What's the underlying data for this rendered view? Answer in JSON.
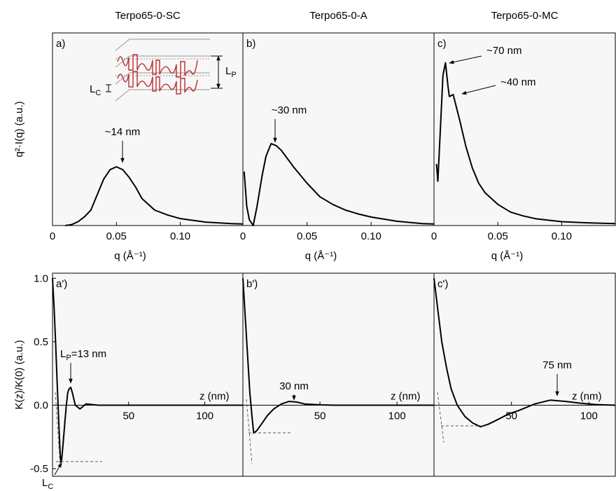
{
  "chart_data": [
    {
      "type": "line",
      "title": "Terpo65-0-SC",
      "panel_label": "a)",
      "xlabel": "q (Å⁻¹)",
      "ylabel": "q²·I(q) (a.u.)",
      "xlim": [
        0,
        0.149
      ],
      "xticks": [
        0,
        0.05,
        {
          "value": 0.1,
          "label": "0.10"
        }
      ],
      "ylim": [
        0,
        1
      ],
      "inset_labels": [
        {
          "text": "L",
          "sub": "P"
        },
        {
          "text": "L",
          "sub": "C"
        }
      ],
      "annotations": [
        {
          "text": "~14 nm"
        }
      ],
      "series": [
        {
          "color": "#000000",
          "x": [
            0.01,
            0.015,
            0.02,
            0.025,
            0.03,
            0.035,
            0.04,
            0.045,
            0.05,
            0.055,
            0.06,
            0.065,
            0.07,
            0.08,
            0.09,
            0.1,
            0.12,
            0.14,
            0.149
          ],
          "values": [
            0,
            0.005,
            0.02,
            0.045,
            0.08,
            0.16,
            0.24,
            0.29,
            0.305,
            0.29,
            0.25,
            0.2,
            0.14,
            0.08,
            0.055,
            0.036,
            0.018,
            0.01,
            0.008
          ]
        }
      ]
    },
    {
      "type": "line",
      "title": "Terpo65-0-A",
      "panel_label": "b)",
      "xlabel": "q (Å⁻¹)",
      "xlim": [
        0,
        0.149
      ],
      "xticks": [
        0,
        0.05,
        {
          "value": 0.1,
          "label": "0.10"
        }
      ],
      "ylim": [
        0,
        1
      ],
      "annotations": [
        {
          "text": "~30 nm"
        }
      ],
      "series": [
        {
          "color": "#000000",
          "x": [
            0.001,
            0.003,
            0.005,
            0.008,
            0.011,
            0.015,
            0.018,
            0.022,
            0.026,
            0.03,
            0.035,
            0.04,
            0.05,
            0.06,
            0.07,
            0.08,
            0.09,
            0.1,
            0.12,
            0.14,
            0.149
          ],
          "values": [
            0.28,
            0.1,
            0.03,
            0,
            0.1,
            0.26,
            0.36,
            0.425,
            0.415,
            0.39,
            0.345,
            0.3,
            0.22,
            0.15,
            0.11,
            0.08,
            0.06,
            0.044,
            0.022,
            0.01,
            0.008
          ]
        }
      ]
    },
    {
      "type": "line",
      "title": "Terpo65-0-MC",
      "panel_label": "c)",
      "xlabel": "q (Å⁻¹)",
      "xlim": [
        0,
        0.142
      ],
      "xticks": [
        0,
        0.05,
        {
          "value": 0.1,
          "label": "0.10"
        }
      ],
      "ylim": [
        0,
        1
      ],
      "annotations": [
        {
          "text": "~70 nm"
        },
        {
          "text": "~40 nm"
        }
      ],
      "series": [
        {
          "color": "#000000",
          "x": [
            0.002,
            0.003,
            0.005,
            0.007,
            0.009,
            0.011,
            0.012,
            0.015,
            0.02,
            0.025,
            0.03,
            0.035,
            0.04,
            0.05,
            0.06,
            0.07,
            0.08,
            0.1,
            0.12,
            0.142
          ],
          "values": [
            0.32,
            0.23,
            0.5,
            0.78,
            0.845,
            0.72,
            0.67,
            0.68,
            0.55,
            0.41,
            0.3,
            0.22,
            0.17,
            0.11,
            0.07,
            0.05,
            0.035,
            0.02,
            0.014,
            0.01
          ]
        }
      ]
    },
    {
      "type": "line",
      "panel_label": "a')",
      "xlabel": "z (nm)",
      "ylabel": "K(z)/K(0) (a.u.)",
      "xlim": [
        0,
        125
      ],
      "xticks": [
        50,
        100
      ],
      "ylim": [
        -0.56,
        1.04
      ],
      "yticks": [
        {
          "value": 1,
          "label": "1.0"
        },
        0.5,
        {
          "value": 0,
          "label": "0.0"
        },
        -0.5
      ],
      "annotations": [
        {
          "text": "L",
          "sub": "P",
          "tail": "=13 nm"
        },
        {
          "text": "L",
          "sub": "C"
        }
      ],
      "series": [
        {
          "color": "#000000",
          "x": [
            0,
            1,
            2,
            3,
            4,
            5,
            5.5,
            6,
            7,
            8,
            9,
            10,
            11,
            12,
            13,
            15,
            18,
            22,
            30,
            60,
            125
          ],
          "values": [
            1,
            0.78,
            0.5,
            0.2,
            -0.1,
            -0.38,
            -0.45,
            -0.43,
            -0.3,
            -0.15,
            -0.01,
            0.1,
            0.13,
            0.14,
            0.1,
            0,
            -0.03,
            0.01,
            0,
            0,
            0
          ]
        }
      ]
    },
    {
      "type": "line",
      "panel_label": "b')",
      "xlabel": "z (nm)",
      "xlim": [
        0,
        124
      ],
      "xticks": [
        50,
        100
      ],
      "ylim": [
        -0.56,
        1.04
      ],
      "annotations": [
        {
          "text": "30 nm"
        }
      ],
      "series": [
        {
          "color": "#000000",
          "x": [
            0,
            1.5,
            3,
            4.5,
            6,
            7,
            9,
            12,
            16,
            20,
            25,
            30,
            35,
            40,
            50,
            60,
            124
          ],
          "values": [
            1,
            0.7,
            0.4,
            0.1,
            -0.1,
            -0.22,
            -0.2,
            -0.15,
            -0.08,
            -0.03,
            0.01,
            0.03,
            0.025,
            0.01,
            0.003,
            0,
            0
          ]
        }
      ]
    },
    {
      "type": "line",
      "panel_label": "c')",
      "xlabel": "z (nm)",
      "xlim": [
        0,
        117
      ],
      "xticks": [
        50,
        100
      ],
      "ylim": [
        -0.56,
        1.04
      ],
      "annotations": [
        {
          "text": "75 nm"
        }
      ],
      "series": [
        {
          "color": "#000000",
          "x": [
            0,
            1.5,
            3,
            5,
            8,
            11,
            15,
            20,
            25,
            30,
            35,
            40,
            48,
            55,
            65,
            75,
            85,
            95,
            105,
            117
          ],
          "values": [
            1,
            0.85,
            0.7,
            0.5,
            0.3,
            0.13,
            0,
            -0.09,
            -0.14,
            -0.17,
            -0.15,
            -0.12,
            -0.07,
            -0.04,
            0.01,
            0.04,
            0.03,
            0.015,
            0.005,
            0
          ]
        }
      ]
    }
  ]
}
